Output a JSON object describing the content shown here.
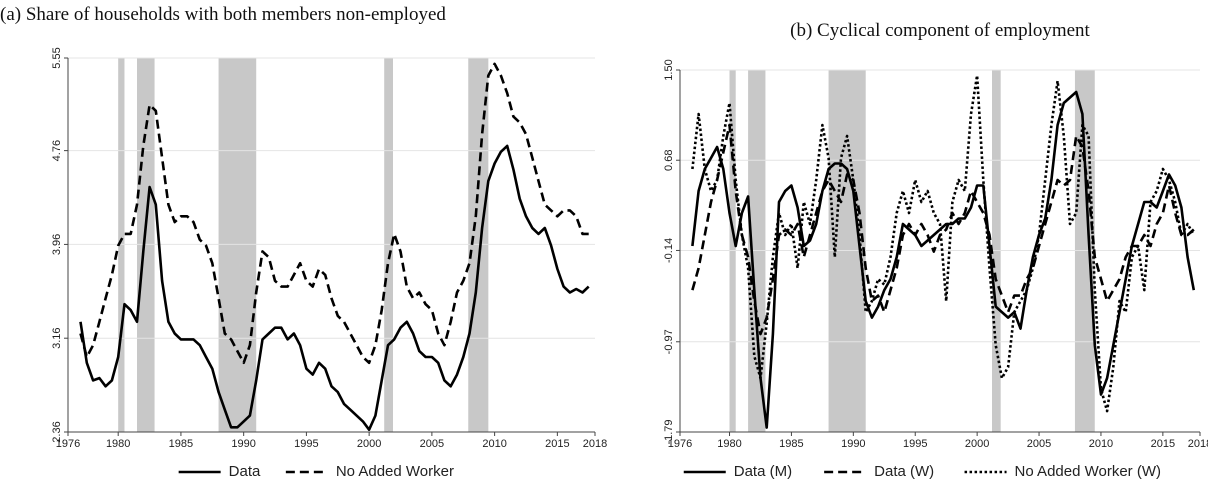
{
  "chart_data": [
    {
      "type": "line",
      "title": "(a) Share of households with both members non-employed",
      "x": [
        1977,
        1977.5,
        1978,
        1978.5,
        1979,
        1979.5,
        1980,
        1980.5,
        1981,
        1981.5,
        1982,
        1982.5,
        1983,
        1983.5,
        1984,
        1984.5,
        1985,
        1985.5,
        1986,
        1986.5,
        1987,
        1987.5,
        1988,
        1988.5,
        1989,
        1989.5,
        1990,
        1990.5,
        1991,
        1991.5,
        1992,
        1992.5,
        1993,
        1993.5,
        1994,
        1994.5,
        1995,
        1995.5,
        1996,
        1996.5,
        1997,
        1997.5,
        1998,
        1998.5,
        1999,
        1999.5,
        2000,
        2000.5,
        2001,
        2001.5,
        2002,
        2002.5,
        2003,
        2003.5,
        2004,
        2004.5,
        2005,
        2005.5,
        2006,
        2006.5,
        2007,
        2007.5,
        2008,
        2008.5,
        2009,
        2009.5,
        2010,
        2010.5,
        2011,
        2011.5,
        2012,
        2012.5,
        2013,
        2013.5,
        2014,
        2014.5,
        2015,
        2015.5,
        2016,
        2016.5,
        2017,
        2017.5
      ],
      "xlim": [
        1976,
        2018
      ],
      "xticks": [
        1976,
        1980,
        1985,
        1990,
        1995,
        2000,
        2005,
        2010,
        2015,
        2018
      ],
      "ylim": [
        2.36,
        5.55
      ],
      "yticks": [
        2.36,
        3.16,
        3.96,
        4.76,
        5.55
      ],
      "grid": true,
      "shaded_periods": [
        [
          1980,
          1980.5
        ],
        [
          1981.5,
          1982.9
        ],
        [
          1988,
          1991
        ],
        [
          2001.2,
          2001.9
        ],
        [
          2007.9,
          2009.5
        ]
      ],
      "series": [
        {
          "name": "Data",
          "color": "#000000",
          "dash": "solid",
          "values": [
            3.3,
            2.95,
            2.8,
            2.82,
            2.75,
            2.8,
            3.0,
            3.45,
            3.4,
            3.3,
            3.9,
            4.45,
            4.3,
            3.65,
            3.3,
            3.2,
            3.15,
            3.15,
            3.15,
            3.1,
            3.0,
            2.9,
            2.7,
            2.55,
            2.4,
            2.4,
            2.45,
            2.5,
            2.8,
            3.15,
            3.2,
            3.25,
            3.25,
            3.15,
            3.2,
            3.1,
            2.9,
            2.85,
            2.95,
            2.9,
            2.75,
            2.7,
            2.6,
            2.55,
            2.5,
            2.45,
            2.38,
            2.5,
            2.8,
            3.1,
            3.15,
            3.25,
            3.3,
            3.2,
            3.05,
            3.0,
            3.0,
            2.95,
            2.8,
            2.75,
            2.85,
            3.0,
            3.2,
            3.55,
            4.1,
            4.5,
            4.65,
            4.75,
            4.8,
            4.6,
            4.35,
            4.2,
            4.1,
            4.05,
            4.1,
            3.95,
            3.75,
            3.6,
            3.55,
            3.58,
            3.55,
            3.6
          ]
        },
        {
          "name": "No Added Worker",
          "color": "#000000",
          "dash": "dashed",
          "values": [
            3.2,
            3.0,
            3.1,
            3.3,
            3.5,
            3.7,
            3.95,
            4.05,
            4.05,
            4.3,
            4.8,
            5.15,
            5.1,
            4.7,
            4.3,
            4.15,
            4.2,
            4.2,
            4.15,
            4.0,
            3.95,
            3.8,
            3.5,
            3.2,
            3.15,
            3.05,
            2.95,
            3.1,
            3.55,
            3.9,
            3.85,
            3.65,
            3.6,
            3.6,
            3.7,
            3.8,
            3.65,
            3.6,
            3.75,
            3.7,
            3.5,
            3.35,
            3.3,
            3.2,
            3.1,
            3.0,
            2.95,
            3.1,
            3.4,
            3.8,
            4.05,
            3.9,
            3.6,
            3.5,
            3.55,
            3.45,
            3.4,
            3.2,
            3.1,
            3.3,
            3.55,
            3.65,
            3.8,
            4.2,
            4.9,
            5.4,
            5.5,
            5.4,
            5.25,
            5.05,
            5.0,
            4.9,
            4.7,
            4.5,
            4.3,
            4.25,
            4.2,
            4.25,
            4.25,
            4.2,
            4.05,
            4.05
          ]
        }
      ]
    },
    {
      "type": "line",
      "title": "(b) Cyclical component of employment",
      "x": [
        1977,
        1977.5,
        1978,
        1978.5,
        1979,
        1979.5,
        1980,
        1980.5,
        1981,
        1981.5,
        1982,
        1982.5,
        1983,
        1983.5,
        1984,
        1984.5,
        1985,
        1985.5,
        1986,
        1986.5,
        1987,
        1987.5,
        1988,
        1988.5,
        1989,
        1989.5,
        1990,
        1990.5,
        1991,
        1991.5,
        1992,
        1992.5,
        1993,
        1993.5,
        1994,
        1994.5,
        1995,
        1995.5,
        1996,
        1996.5,
        1997,
        1997.5,
        1998,
        1998.5,
        1999,
        1999.5,
        2000,
        2000.5,
        2001,
        2001.5,
        2002,
        2002.5,
        2003,
        2003.5,
        2004,
        2004.5,
        2005,
        2005.5,
        2006,
        2006.5,
        2007,
        2007.5,
        2008,
        2008.5,
        2009,
        2009.5,
        2010,
        2010.5,
        2011,
        2011.5,
        2012,
        2012.5,
        2013,
        2013.5,
        2014,
        2014.5,
        2015,
        2015.5,
        2016,
        2016.5,
        2017,
        2017.5
      ],
      "xlim": [
        1976,
        2018
      ],
      "xticks": [
        1976,
        1980,
        1985,
        1990,
        1995,
        2000,
        2005,
        2010,
        2015,
        2018
      ],
      "ylim": [
        -1.79,
        1.5
      ],
      "yticks": [
        -1.79,
        -0.97,
        -0.14,
        0.68,
        {
          "value": 1.5,
          "label": "1.50"
        }
      ],
      "grid": true,
      "shaded_periods": [
        [
          1980,
          1980.5
        ],
        [
          1981.5,
          1982.9
        ],
        [
          1988,
          1991
        ],
        [
          2001.2,
          2001.9
        ],
        [
          2007.9,
          2009.5
        ]
      ],
      "series": [
        {
          "name": "Data (M)",
          "color": "#000000",
          "dash": "solid",
          "values": [
            -0.1,
            0.4,
            0.6,
            0.7,
            0.8,
            0.6,
            0.2,
            -0.1,
            0.2,
            0.35,
            -0.5,
            -1.3,
            -1.75,
            -0.9,
            0.3,
            0.4,
            0.45,
            0.25,
            -0.1,
            -0.05,
            0.1,
            0.4,
            0.6,
            0.65,
            0.65,
            0.6,
            0.4,
            -0.1,
            -0.6,
            -0.75,
            -0.65,
            -0.5,
            -0.4,
            -0.2,
            0.1,
            0.05,
            0.0,
            -0.1,
            -0.05,
            0.0,
            0.05,
            0.1,
            0.1,
            0.15,
            0.15,
            0.25,
            0.45,
            0.45,
            -0.1,
            -0.65,
            -0.7,
            -0.75,
            -0.7,
            -0.85,
            -0.5,
            -0.2,
            0.0,
            0.15,
            0.5,
            1.0,
            1.2,
            1.25,
            1.3,
            1.1,
            0.0,
            -1.0,
            -1.45,
            -1.3,
            -1.0,
            -0.7,
            -0.4,
            -0.1,
            0.1,
            0.3,
            0.3,
            0.25,
            0.4,
            0.55,
            0.45,
            0.25,
            -0.2,
            -0.5
          ]
        },
        {
          "name": "Data (W)",
          "color": "#000000",
          "dash": "dashed",
          "values": [
            -0.5,
            -0.3,
            0.0,
            0.3,
            0.5,
            0.75,
            1.0,
            0.4,
            0.0,
            -0.2,
            -0.6,
            -0.9,
            -0.75,
            -0.4,
            0.0,
            0.05,
            0.0,
            0.1,
            -0.2,
            0.0,
            0.2,
            0.4,
            0.5,
            0.4,
            0.3,
            0.55,
            0.5,
            0.2,
            -0.3,
            -0.6,
            -0.55,
            -0.7,
            -0.5,
            -0.3,
            0.0,
            0.1,
            0.0,
            0.1,
            0.0,
            -0.15,
            0.0,
            0.05,
            0.2,
            0.1,
            0.2,
            0.4,
            0.3,
            0.2,
            0.0,
            -0.4,
            -0.55,
            -0.7,
            -0.55,
            -0.55,
            -0.4,
            -0.3,
            -0.1,
            0.1,
            0.3,
            0.5,
            0.45,
            0.5,
            0.9,
            0.8,
            0.4,
            -0.2,
            -0.4,
            -0.6,
            -0.5,
            -0.4,
            -0.2,
            -0.1,
            -0.1,
            0.0,
            -0.1,
            0.1,
            0.2,
            0.45,
            0.2,
            0.0,
            0.0,
            0.05
          ]
        },
        {
          "name": "No Added Worker (W)",
          "color": "#000000",
          "dash": "dotted",
          "values": [
            0.6,
            1.1,
            0.6,
            0.4,
            0.5,
            0.9,
            1.2,
            0.5,
            0.0,
            -0.3,
            -1.1,
            -1.3,
            -0.8,
            -0.2,
            0.2,
            0.0,
            0.1,
            -0.3,
            0.3,
            0.1,
            0.5,
            1.0,
            0.7,
            -0.2,
            0.7,
            0.9,
            0.5,
            0.0,
            -0.7,
            -0.6,
            -0.4,
            -0.45,
            -0.2,
            0.2,
            0.4,
            0.2,
            0.5,
            0.3,
            0.4,
            0.2,
            0.1,
            -0.6,
            0.3,
            0.5,
            0.4,
            1.1,
            1.45,
            0.5,
            -0.3,
            -1.0,
            -1.3,
            -1.2,
            -0.7,
            -0.6,
            -0.5,
            -0.3,
            0.0,
            0.5,
            1.0,
            1.4,
            0.9,
            0.1,
            0.2,
            1.0,
            0.9,
            -0.5,
            -1.4,
            -1.6,
            -1.2,
            -0.6,
            -0.7,
            -0.2,
            -0.1,
            -0.5,
            0.3,
            0.4,
            0.6,
            0.5,
            0.3,
            0.0,
            0.1,
            0.0
          ]
        }
      ]
    }
  ]
}
